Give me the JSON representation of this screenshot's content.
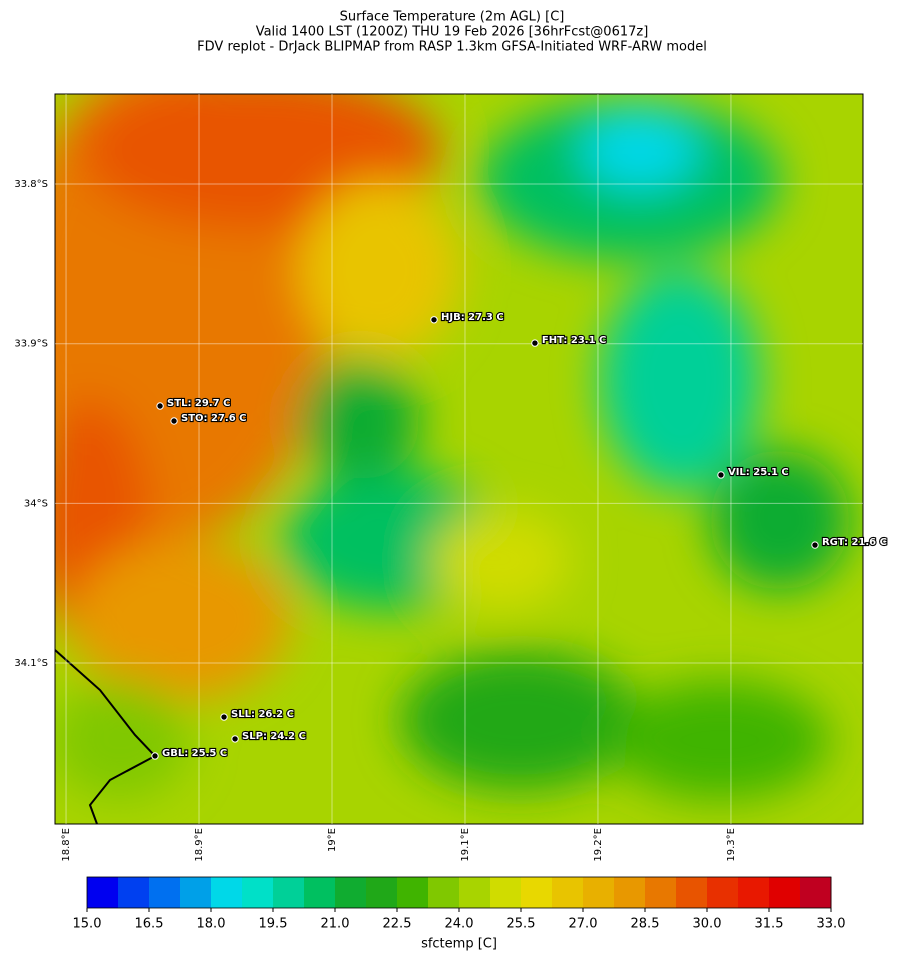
{
  "title_lines": [
    "Surface Temperature (2m AGL) [C]",
    "Valid 1400 LST (1200Z) THU 19 Feb 2026 [36hrFcst@0617z]",
    "FDV replot - DrJack BLIPMAP from RASP 1.3km GFSA-Initiated WRF-ARW model"
  ],
  "chart_data": {
    "type": "map",
    "xlim": [
      18.7917,
      19.3993
    ],
    "ylim": [
      -34.2008,
      -33.7436
    ],
    "xticks": [
      {
        "value": 18.8,
        "label": "18.8°E"
      },
      {
        "value": 18.9,
        "label": "18.9°E"
      },
      {
        "value": 19.0,
        "label": "19°E"
      },
      {
        "value": 19.1,
        "label": "19.1°E"
      },
      {
        "value": 19.2,
        "label": "19.2°E"
      },
      {
        "value": 19.3,
        "label": "19.3°E"
      }
    ],
    "yticks": [
      {
        "value": -33.8,
        "label": "33.8°S"
      },
      {
        "value": -33.9,
        "label": "33.9°S"
      },
      {
        "value": -34.0,
        "label": "34°S"
      },
      {
        "value": -34.1,
        "label": "34.1°S"
      }
    ],
    "grid": true,
    "stations": [
      {
        "label": "HJB: 27.3 C",
        "value": 27.3,
        "lon": 19.0767,
        "lat": -33.885
      },
      {
        "label": "FHT: 23.1 C",
        "value": 23.1,
        "lon": 19.1526,
        "lat": -33.8996
      },
      {
        "label": "STL: 29.7 C",
        "value": 29.7,
        "lon": 18.8707,
        "lat": -33.939
      },
      {
        "label": "STO: 27.6 C",
        "value": 27.6,
        "lon": 18.8812,
        "lat": -33.9484
      },
      {
        "label": "VIL: 25.1 C",
        "value": 25.1,
        "lon": 19.2925,
        "lat": -33.9822
      },
      {
        "label": "RGT: 21.6 C",
        "value": 21.6,
        "lon": 19.3632,
        "lat": -34.0261
      },
      {
        "label": "SLL: 26.2 C",
        "value": 26.2,
        "lon": 18.9188,
        "lat": -34.1338
      },
      {
        "label": "SLP: 24.2 C",
        "value": 24.2,
        "lon": 18.9271,
        "lat": -34.1475
      },
      {
        "label": "GBL: 25.5 C",
        "value": 25.5,
        "lon": 18.8669,
        "lat": -34.1582
      }
    ],
    "colorbar": {
      "label": "sfctemp [C]",
      "clim": [
        15,
        33
      ],
      "colors": [
        "#0000f0",
        "#0040f0",
        "#0070f0",
        "#00a0e8",
        "#00d8e8",
        "#00e0c8",
        "#00d098",
        "#00c060",
        "#10ac30",
        "#20a818",
        "#40b400",
        "#80c800",
        "#a8d400",
        "#d0dc00",
        "#e8d800",
        "#e8c400",
        "#e8b000",
        "#e89800",
        "#e87800",
        "#e85400",
        "#e83000",
        "#e81800",
        "#e00000",
        "#c00020"
      ],
      "ticks": [
        {
          "value": 15,
          "label": "15.0"
        },
        {
          "value": 16.5,
          "label": "16.5"
        },
        {
          "value": 18,
          "label": "18.0"
        },
        {
          "value": 19.5,
          "label": "19.5"
        },
        {
          "value": 21,
          "label": "21.0"
        },
        {
          "value": 22.5,
          "label": "22.5"
        },
        {
          "value": 24,
          "label": "24.0"
        },
        {
          "value": 25.5,
          "label": "25.5"
        },
        {
          "value": 27,
          "label": "27.0"
        },
        {
          "value": 28.5,
          "label": "28.5"
        },
        {
          "value": 30,
          "label": "30.0"
        },
        {
          "value": 31.5,
          "label": "31.5"
        },
        {
          "value": 33,
          "label": "33.0"
        }
      ]
    }
  }
}
